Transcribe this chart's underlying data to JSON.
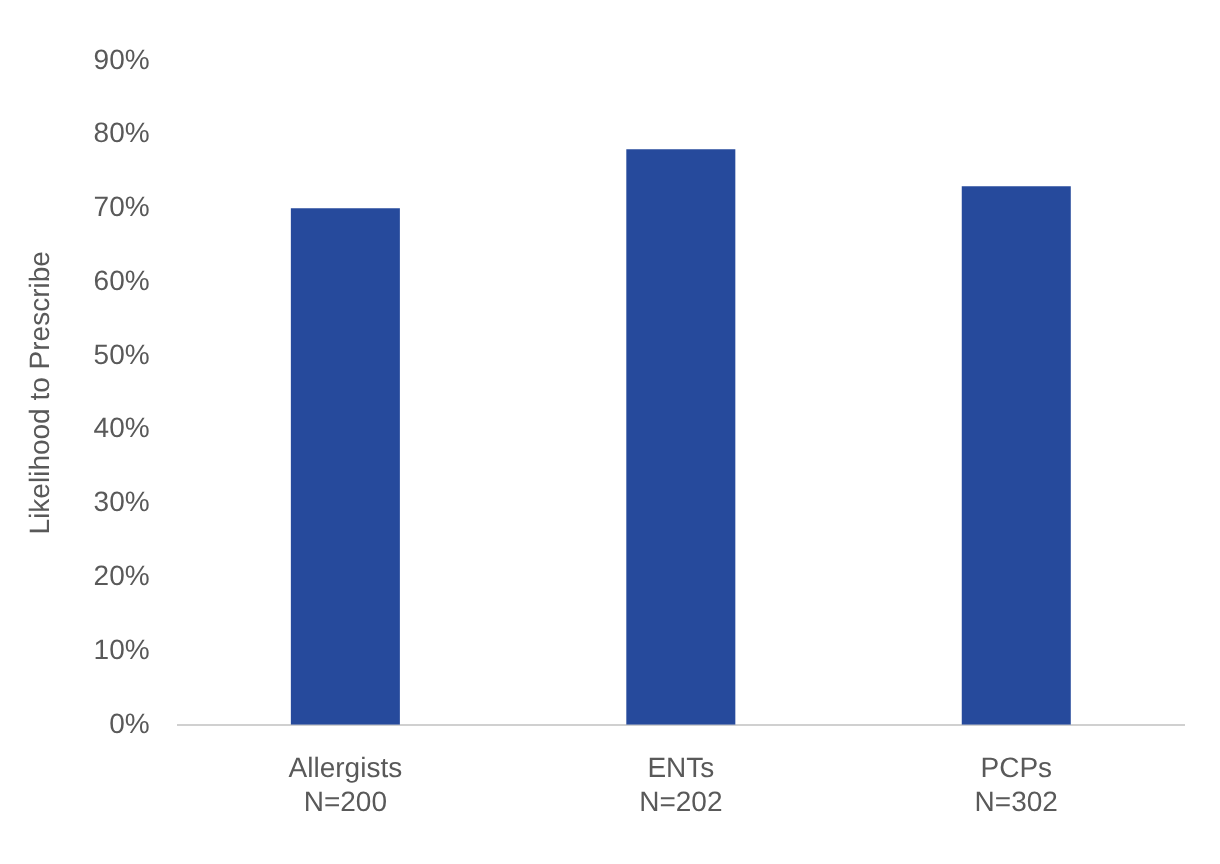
{
  "chart_data": {
    "type": "bar",
    "ylabel": "Likelihood to Prescribe",
    "categories": [
      "Allergists\nN=200",
      "ENTs\nN=202",
      "PCPs\nN=302"
    ],
    "values": [
      70,
      78,
      73
    ],
    "color": "#264a9c",
    "ylim": [
      0,
      90
    ],
    "yticks": [
      {
        "value": 0,
        "label": "0%"
      },
      {
        "value": 10,
        "label": "10%"
      },
      {
        "value": 20,
        "label": "20%"
      },
      {
        "value": 30,
        "label": "30%"
      },
      {
        "value": 40,
        "label": "40%"
      },
      {
        "value": 50,
        "label": "50%"
      },
      {
        "value": 60,
        "label": "60%"
      },
      {
        "value": 70,
        "label": "70%"
      },
      {
        "value": 80,
        "label": "80%"
      },
      {
        "value": 90,
        "label": "90%"
      }
    ],
    "grid": false,
    "legend": false
  }
}
